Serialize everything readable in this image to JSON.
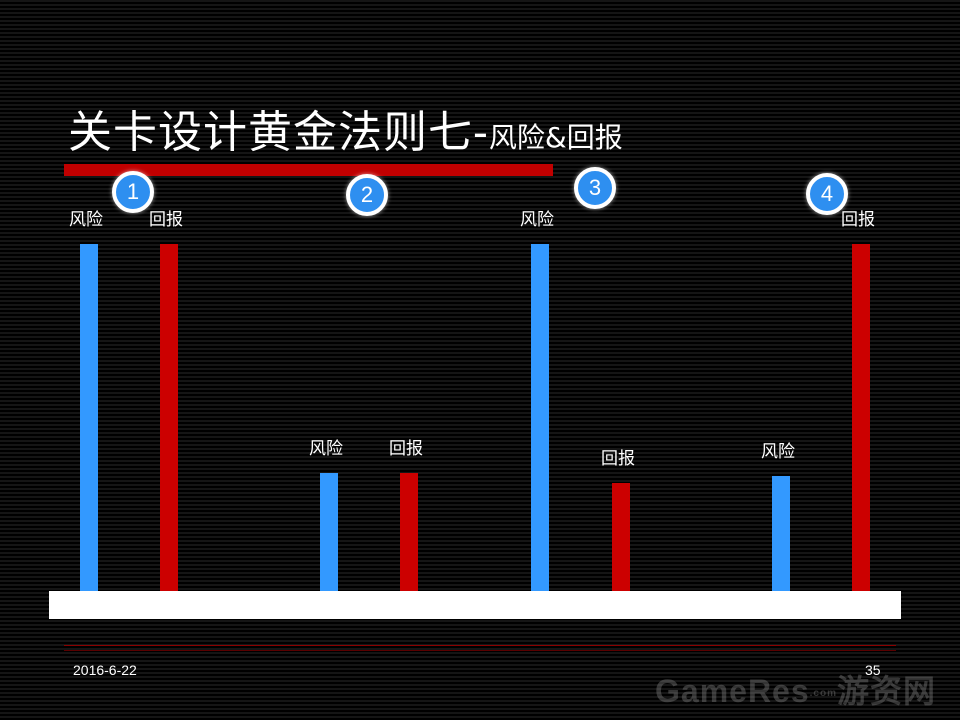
{
  "slide": {
    "title_main": "关卡设计黄金法则七-",
    "title_sub": "风险&回报",
    "date": "2016-6-22",
    "page_number": "35",
    "watermark": {
      "brand": "GameRes",
      "dot": ".com",
      "cn": "游资网"
    },
    "colors": {
      "risk": "#3399ff",
      "reward": "#cc0000",
      "accent": "#c00000",
      "background": "#000000"
    }
  },
  "chart_data": {
    "type": "bar",
    "title": "",
    "xlabel": "",
    "ylabel": "",
    "groups": [
      {
        "label": "1",
        "bars": [
          {
            "name": "风险",
            "value": 1.0,
            "color": "#3399ff"
          },
          {
            "name": "回报",
            "value": 1.0,
            "color": "#cc0000"
          }
        ]
      },
      {
        "label": "2",
        "bars": [
          {
            "name": "风险",
            "value": 0.34,
            "color": "#3399ff"
          },
          {
            "name": "回报",
            "value": 0.34,
            "color": "#cc0000"
          }
        ]
      },
      {
        "label": "3",
        "bars": [
          {
            "name": "风险",
            "value": 1.0,
            "color": "#3399ff"
          },
          {
            "name": "回报",
            "value": 0.31,
            "color": "#cc0000"
          }
        ]
      },
      {
        "label": "4",
        "bars": [
          {
            "name": "风险",
            "value": 0.33,
            "color": "#3399ff"
          },
          {
            "name": "回报",
            "value": 1.0,
            "color": "#cc0000"
          }
        ]
      }
    ]
  }
}
